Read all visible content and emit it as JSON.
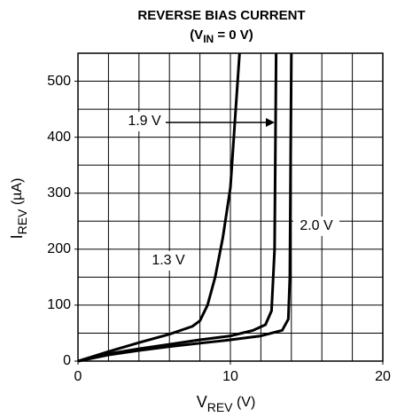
{
  "chart_data": {
    "type": "line",
    "title": "REVERSE BIAS CURRENT",
    "subtitle": {
      "open": "(V",
      "sub": "IN",
      "close": " = 0 V)"
    },
    "x_label": {
      "main": "V",
      "sub": "REV",
      "unit": " (V)"
    },
    "y_label": {
      "main": "I",
      "sub": "REV",
      "unit": " (µA)"
    },
    "xlim": [
      0,
      20
    ],
    "xticks": [
      0,
      10,
      20
    ],
    "ylim": [
      0,
      550
    ],
    "yticks": [
      0,
      100,
      200,
      300,
      400,
      500
    ],
    "xgrid": [
      0,
      2,
      4,
      6,
      8,
      10,
      12,
      14,
      16,
      18,
      20
    ],
    "ygrid": [
      0,
      50,
      100,
      150,
      200,
      250,
      300,
      350,
      400,
      450,
      500,
      550
    ],
    "grid": true,
    "series": [
      {
        "name": "1.3 V",
        "color": "#000000",
        "x": [
          0,
          2,
          4,
          6,
          7.5,
          8,
          8.5,
          9,
          9.5,
          10,
          10.3,
          10.6
        ],
        "values": [
          0,
          17,
          33,
          48,
          62,
          72,
          100,
          150,
          220,
          310,
          430,
          550
        ]
      },
      {
        "name": "1.9 V",
        "color": "#000000",
        "x": [
          0,
          2,
          4,
          6,
          8,
          10,
          11.5,
          12.3,
          12.7,
          12.9,
          13
        ],
        "values": [
          0,
          13,
          22,
          30,
          38,
          45,
          55,
          65,
          90,
          200,
          550
        ]
      },
      {
        "name": "2.0 V",
        "color": "#000000",
        "x": [
          0,
          2,
          4,
          6,
          8,
          10,
          12,
          13.4,
          13.8,
          13.9,
          14
        ],
        "values": [
          0,
          11,
          19,
          26,
          32,
          38,
          45,
          55,
          75,
          150,
          550
        ]
      }
    ]
  }
}
